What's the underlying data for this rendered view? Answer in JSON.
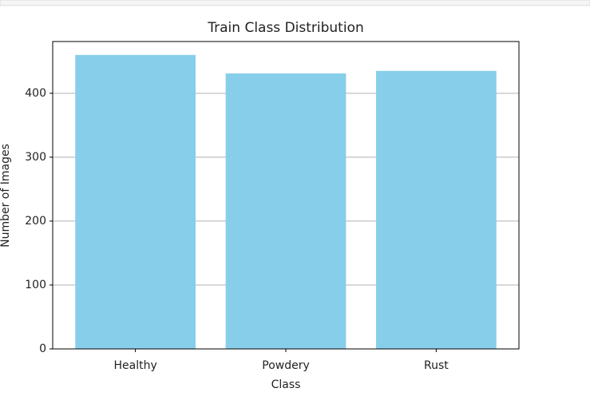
{
  "chart_data": {
    "type": "bar",
    "title": "Train Class Distribution",
    "x_label": "Class",
    "y_label": "Number of Images",
    "categories": [
      "Healthy",
      "Powdery",
      "Rust"
    ],
    "values": [
      460,
      431,
      435
    ],
    "color": "#87ceeb",
    "ylim": [
      0,
      481
    ],
    "yticks": [
      0,
      100,
      200,
      300,
      400
    ],
    "grid": true
  }
}
